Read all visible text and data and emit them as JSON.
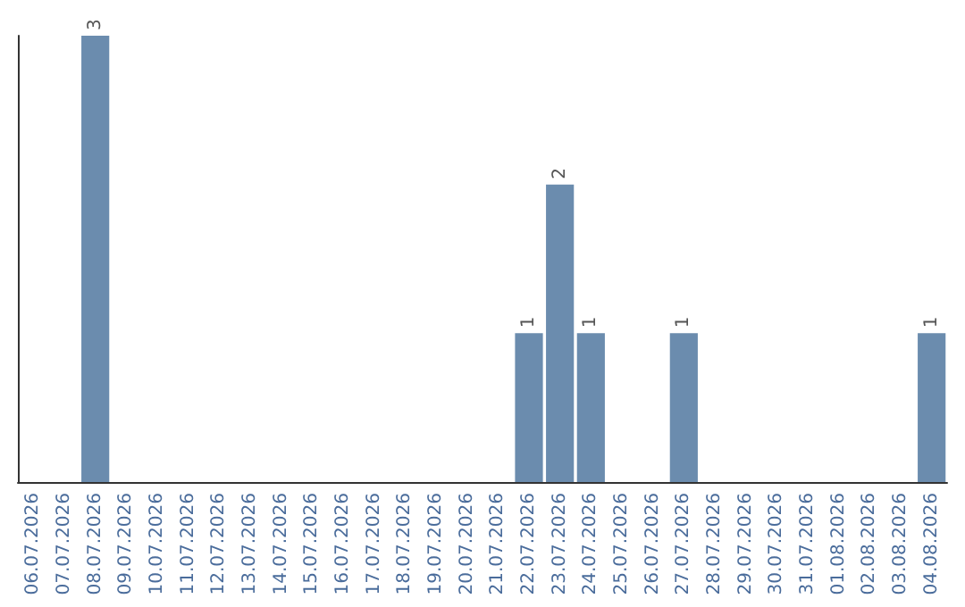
{
  "chart_data": {
    "type": "bar",
    "categories": [
      "06.07.2026",
      "07.07.2026",
      "08.07.2026",
      "09.07.2026",
      "10.07.2026",
      "11.07.2026",
      "12.07.2026",
      "13.07.2026",
      "14.07.2026",
      "15.07.2026",
      "16.07.2026",
      "17.07.2026",
      "18.07.2026",
      "19.07.2026",
      "20.07.2026",
      "21.07.2026",
      "22.07.2026",
      "23.07.2026",
      "24.07.2026",
      "25.07.2026",
      "26.07.2026",
      "27.07.2026",
      "28.07.2026",
      "29.07.2026",
      "30.07.2026",
      "31.07.2026",
      "01.08.2026",
      "02.08.2026",
      "03.08.2026",
      "04.08.2026"
    ],
    "values": [
      0,
      0,
      3,
      0,
      0,
      0,
      0,
      0,
      0,
      0,
      0,
      0,
      0,
      0,
      0,
      0,
      1,
      2,
      1,
      0,
      0,
      1,
      0,
      0,
      0,
      0,
      0,
      0,
      0,
      1
    ],
    "value_labels": [
      null,
      null,
      "3",
      null,
      null,
      null,
      null,
      null,
      null,
      null,
      null,
      null,
      null,
      null,
      null,
      null,
      "1",
      "2",
      "1",
      null,
      null,
      "1",
      null,
      null,
      null,
      null,
      null,
      null,
      null,
      "1"
    ],
    "color": "#6b8cae",
    "tick_labels": "x"
  }
}
